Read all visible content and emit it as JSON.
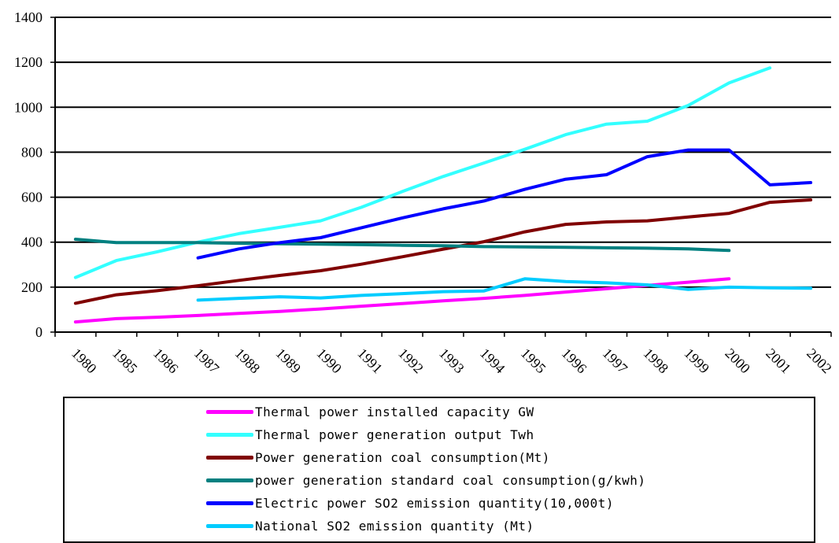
{
  "chart_data": {
    "type": "line",
    "title": "",
    "xlabel": "",
    "ylabel": "",
    "ylim": [
      0,
      1400
    ],
    "yticks": [
      0,
      200,
      400,
      600,
      800,
      1000,
      1200,
      1400
    ],
    "grid": "horizontal",
    "legend_position": "bottom",
    "categories": [
      "1980",
      "1985",
      "1986",
      "1987",
      "1988",
      "1989",
      "1990",
      "1991",
      "1992",
      "1993",
      "1994",
      "1995",
      "1996",
      "1997",
      "1998",
      "1999",
      "2000",
      "2001",
      "2002"
    ],
    "series": [
      {
        "name": "Thermal power installed capacity GW",
        "color": "#ff00ff",
        "values": [
          45,
          60,
          66,
          74,
          83,
          92,
          103,
          115,
          127,
          139,
          150,
          163,
          178,
          193,
          208,
          222,
          237,
          null,
          null
        ]
      },
      {
        "name": "Thermal power generation output Twh",
        "color": "#33ffff",
        "values": [
          243,
          318,
          357,
          400,
          438,
          466,
          495,
          555,
          625,
          692,
          752,
          813,
          878,
          925,
          938,
          1008,
          1108,
          1175,
          null
        ]
      },
      {
        "name": "Power generation coal consumption(Mt)",
        "color": "#800000",
        "values": [
          128,
          166,
          184,
          206,
          230,
          252,
          273,
          302,
          335,
          369,
          402,
          446,
          479,
          490,
          495,
          512,
          528,
          577,
          588
        ]
      },
      {
        "name": "power generation standard coal consumption(g/kwh)",
        "color": "#008080",
        "values": [
          413,
          398,
          398,
          398,
          395,
          393,
          391,
          389,
          386,
          384,
          380,
          379,
          377,
          375,
          373,
          370,
          363,
          null,
          null
        ]
      },
      {
        "name": "Electric power SO2 emission quantity(10,000t)",
        "color": "#0000ff",
        "values": [
          null,
          null,
          null,
          330,
          370,
          398,
          420,
          464,
          508,
          548,
          583,
          635,
          680,
          700,
          780,
          810,
          810,
          655,
          665
        ]
      },
      {
        "name": "National SO2 emission quantity (Mt)",
        "color": "#00ccff",
        "values": [
          null,
          null,
          null,
          142,
          150,
          157,
          152,
          163,
          171,
          180,
          183,
          237,
          225,
          219,
          210,
          190,
          200,
          197,
          195
        ]
      }
    ]
  }
}
